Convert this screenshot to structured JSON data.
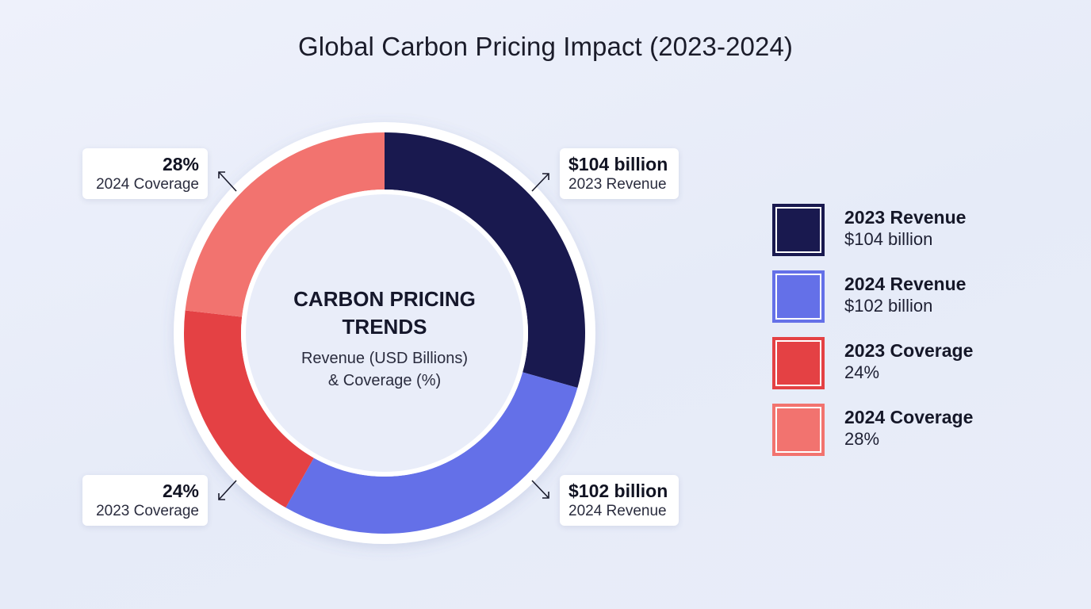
{
  "title": "Global Carbon Pricing Impact (2023-2024)",
  "chart_data": {
    "type": "pie",
    "variant": "donut",
    "center_title": "CARBON PRICING TRENDS",
    "center_subtitle_line1": "Revenue (USD Billions)",
    "center_subtitle_line2": "& Coverage (%)",
    "slices": [
      {
        "label": "2023 Revenue",
        "value_text": "$104 billion",
        "value": 104,
        "unit": "USD billion",
        "color": "#19194f",
        "share_pct": 29.4
      },
      {
        "label": "2024 Revenue",
        "value_text": "$102 billion",
        "value": 102,
        "unit": "USD billion",
        "color": "#6470e8",
        "share_pct": 28.8
      },
      {
        "label": "2023 Coverage",
        "value_text": "24%",
        "value": 24,
        "unit": "%",
        "color": "#e44144",
        "share_pct": 18.6
      },
      {
        "label": "2024 Coverage",
        "value_text": "28%",
        "value": 28,
        "unit": "%",
        "color": "#f2736f",
        "share_pct": 23.2
      }
    ]
  },
  "callouts": {
    "rev2023": {
      "big": "$104 billion",
      "small": "2023 Revenue"
    },
    "rev2024": {
      "big": "$102 billion",
      "small": "2024 Revenue"
    },
    "cov2023": {
      "big": "24%",
      "small": "2023 Coverage"
    },
    "cov2024": {
      "big": "28%",
      "small": "2024 Coverage"
    }
  },
  "legend": [
    {
      "name": "2023 Revenue",
      "value": "$104 billion",
      "color": "#19194f"
    },
    {
      "name": "2024 Revenue",
      "value": "$102 billion",
      "color": "#6470e8"
    },
    {
      "name": "2023 Coverage",
      "value": "24%",
      "color": "#e44144"
    },
    {
      "name": "2024 Coverage",
      "value": "28%",
      "color": "#f2736f"
    }
  ]
}
